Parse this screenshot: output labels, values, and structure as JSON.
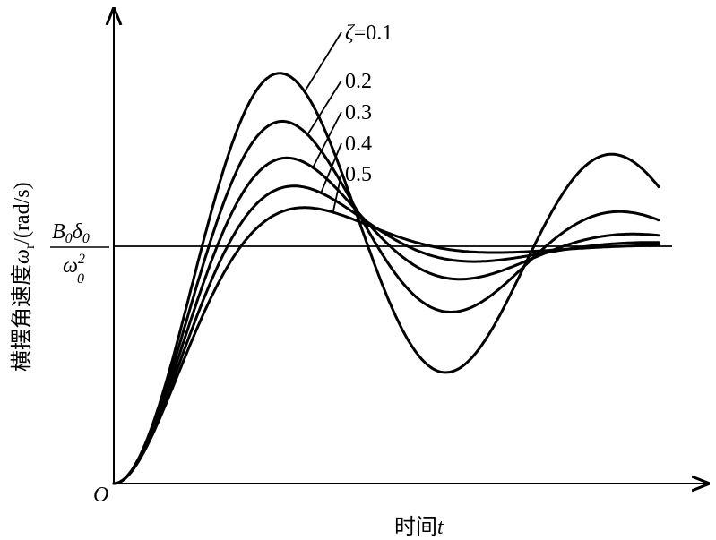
{
  "chart_data": {
    "type": "line",
    "ylabel": {
      "main": "横摆角速度",
      "symbol": "ω",
      "subscript": "r",
      "unit": "/(rad/s)"
    },
    "xlabel": {
      "main": "时间",
      "symbol": "t"
    },
    "origin_label": "O",
    "steady_state_label": {
      "numerator": "B",
      "numerator_sub": "0",
      "numerator2": "δ",
      "numerator2_sub": "0",
      "denominator": "ω",
      "denominator_sub": "0",
      "denominator_sup": "2"
    },
    "steady_state_value": 1.0,
    "xlim": [
      0,
      12
    ],
    "ylim": [
      0,
      2.0
    ],
    "zeta_label_prefix": "ζ=",
    "series": [
      {
        "label": "0.1",
        "zeta": 0.1
      },
      {
        "label": "0.2",
        "zeta": 0.2
      },
      {
        "label": "0.3",
        "zeta": 0.3
      },
      {
        "label": "0.4",
        "zeta": 0.4
      },
      {
        "label": "0.5",
        "zeta": 0.5
      }
    ]
  }
}
